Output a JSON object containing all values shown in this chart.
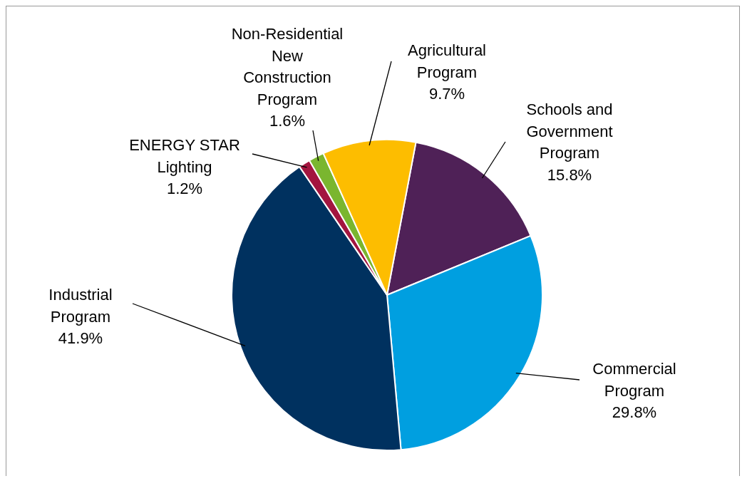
{
  "chart_data": {
    "type": "pie",
    "categories": [
      "Schools and Government Program",
      "Commercial Program",
      "Industrial Program",
      "ENERGY STAR Lighting",
      "Non-Residential New Construction Program",
      "Agricultural Program"
    ],
    "values": [
      15.8,
      29.8,
      41.9,
      1.2,
      1.6,
      9.7
    ],
    "value_labels": [
      "15.8%",
      "29.8%",
      "41.9%",
      "1.2%",
      "1.6%",
      "9.7%"
    ],
    "colors": [
      "#4f2157",
      "#009fe0",
      "#00315f",
      "#a3153f",
      "#7ab62f",
      "#fdbd00"
    ],
    "legend": false
  }
}
